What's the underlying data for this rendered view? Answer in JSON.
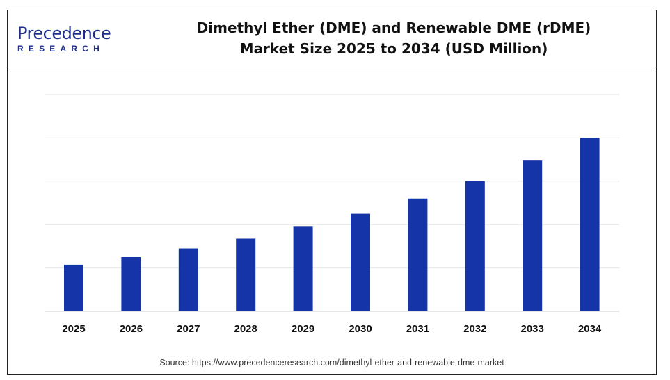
{
  "brand": {
    "logo_line1": "Precedence",
    "logo_line2": "RESEARCH"
  },
  "header": {
    "title_line1": "Dimethyl Ether (DME) and Renewable DME (rDME)",
    "title_line2": "Market Size 2025 to 2034 (USD Million)"
  },
  "source": "Source: https://www.precedenceresearch.com/dimethyl-ether-and-renewable-dme-market",
  "colors": {
    "bar": "#1534a8",
    "grid": "#e6e6e6",
    "text": "#111111",
    "brand": "#1f2e8c"
  },
  "chart_data": {
    "type": "bar",
    "categories": [
      "2025",
      "2026",
      "2027",
      "2028",
      "2029",
      "2030",
      "2031",
      "2032",
      "2033",
      "2034"
    ],
    "values": [
      21.5,
      25,
      29,
      33.5,
      39,
      45,
      52,
      60,
      69.5,
      80
    ],
    "title": "Dimethyl Ether (DME) and Renewable DME (rDME) Market Size 2025 to 2034 (USD Million)",
    "xlabel": "",
    "ylabel": "",
    "ylim": [
      0,
      100
    ],
    "y_tick_labels_shown": false,
    "grid": true,
    "legend": "none"
  }
}
